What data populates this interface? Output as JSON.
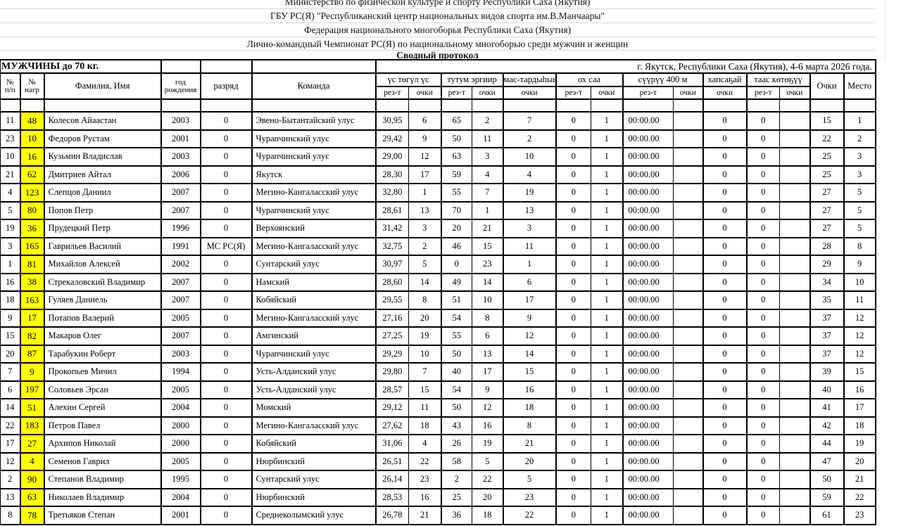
{
  "document_header": {
    "lines": [
      "Министерство по физической культуре и спорту Республики Саха (Якутия)",
      "ГБУ РС(Я) \"Республиканский центр национальных видов спорта им.В.Манчаары\"",
      "Федерация национального многоборья Республики Саха (Якутия)",
      "Лично-командный Чемпионат РС(Я) по национальному многоборью среди мужчин и женщин",
      "Сводный протокол"
    ]
  },
  "title_row": {
    "category": "МУЖЧИНЫ до 70 кг.",
    "location_date": "г. Якутск, Республики Саха (Якутия), 4-6 марта 2026 года."
  },
  "table": {
    "simple_headers": {
      "pp": [
        "№",
        "п/п"
      ],
      "bib": [
        "№",
        "нагр"
      ],
      "name": "Фамилия, Имя",
      "year": [
        "год",
        "рождения"
      ],
      "rank": "разряд",
      "team": "Команда"
    },
    "groups": [
      {
        "label": "үс төгүл үс",
        "sub": [
          "рез-т",
          "очки"
        ]
      },
      {
        "label": "тутум эргиир",
        "sub": [
          "рез-т",
          "очки"
        ]
      },
      {
        "label": "мас-тардыһыы",
        "sub": [
          "очки"
        ]
      },
      {
        "label": "ох саа",
        "sub": [
          "рез-т",
          "очки"
        ]
      },
      {
        "label": "сүүрүү 400 м",
        "sub": [
          "рез-т",
          "очки"
        ]
      },
      {
        "label": "хапсаҕай",
        "sub": [
          "очки"
        ]
      },
      {
        "label": "таас көтөҕүү",
        "sub": [
          "рез-т",
          "очки"
        ]
      }
    ],
    "points_header": "Очки",
    "place_header": "Место",
    "rows": [
      [
        11,
        48,
        "Колесов Айаастан",
        2003,
        "0",
        "Эвено-Бытантайский улус",
        "30,95",
        6,
        65,
        2,
        7,
        0,
        1,
        "00:00.00",
        "",
        0,
        0,
        "",
        15,
        1
      ],
      [
        23,
        10,
        "Федоров Рустам",
        2001,
        "0",
        "Чурапчинский улус",
        "29,42",
        9,
        50,
        11,
        2,
        0,
        1,
        "00:00.00",
        "",
        0,
        0,
        "",
        22,
        2
      ],
      [
        10,
        16,
        "Кузьмин Владислав",
        2003,
        "0",
        "Чурапчинский улус",
        "29,00",
        12,
        63,
        3,
        10,
        0,
        1,
        "00:00.00",
        "",
        0,
        0,
        "",
        25,
        3
      ],
      [
        21,
        62,
        "Дмитриев Айтал",
        2006,
        "0",
        "Якутск",
        "28,30",
        17,
        59,
        4,
        4,
        0,
        1,
        "00:00.00",
        "",
        0,
        0,
        "",
        25,
        3
      ],
      [
        4,
        123,
        "Слепцов Даниил",
        2007,
        "0",
        "Мегино-Кангаласский улус",
        "32,80",
        1,
        55,
        7,
        19,
        0,
        1,
        "00:00.00",
        "",
        0,
        0,
        "",
        27,
        5
      ],
      [
        5,
        80,
        "Попов Петр",
        2007,
        "0",
        "Чурапчинский улус",
        "28,61",
        13,
        70,
        1,
        13,
        0,
        1,
        "00:00.00",
        "",
        0,
        0,
        "",
        27,
        5
      ],
      [
        19,
        36,
        "Прудецкий Петр",
        1996,
        "0",
        "Верхоянский",
        "31,42",
        3,
        20,
        21,
        3,
        0,
        1,
        "00:00.00",
        "",
        0,
        0,
        "",
        27,
        5
      ],
      [
        3,
        165,
        "Гаврильев Василий",
        1991,
        "МС РС(Я)",
        "Мегино-Кангаласский улус",
        "32,75",
        2,
        46,
        15,
        11,
        0,
        1,
        "00:00.00",
        "",
        0,
        0,
        "",
        28,
        8
      ],
      [
        1,
        81,
        "Михайлов Алексей",
        2002,
        "0",
        "Сунтарский улус",
        "30,97",
        5,
        0,
        23,
        1,
        0,
        1,
        "00:00.00",
        "",
        0,
        0,
        "",
        29,
        9
      ],
      [
        16,
        38,
        "Стрекаловский Владимир",
        2007,
        "0",
        "Намский",
        "28,60",
        14,
        49,
        14,
        6,
        0,
        1,
        "00:00.00",
        "",
        0,
        0,
        "",
        34,
        10
      ],
      [
        18,
        163,
        "Гуляев Даниель",
        2007,
        "0",
        "Кобяйский",
        "29,55",
        8,
        51,
        10,
        17,
        0,
        1,
        "00:00.00",
        "",
        0,
        0,
        "",
        35,
        11
      ],
      [
        9,
        17,
        "Потапов Валерий",
        2005,
        "0",
        "Мегино-Кангаласский улус",
        "27,16",
        20,
        54,
        8,
        9,
        0,
        1,
        "00:00.00",
        "",
        0,
        0,
        "",
        37,
        12
      ],
      [
        15,
        82,
        "Макаров Олег",
        2007,
        "0",
        "Амгинский",
        "27,25",
        19,
        55,
        6,
        12,
        0,
        1,
        "00:00.00",
        "",
        0,
        0,
        "",
        37,
        12
      ],
      [
        20,
        87,
        "Тарабукин Роберт",
        2003,
        "0",
        "Чурапчинский улус",
        "29,29",
        10,
        50,
        13,
        14,
        0,
        1,
        "00:00.00",
        "",
        0,
        0,
        "",
        37,
        12
      ],
      [
        7,
        9,
        "Прокопьев Мичил",
        1994,
        "0",
        "Усть-Алданский улус",
        "29,80",
        7,
        40,
        17,
        15,
        0,
        1,
        "00:00.00",
        "",
        0,
        0,
        "",
        39,
        15
      ],
      [
        6,
        197,
        "Соловьев Эрсан",
        2005,
        "0",
        "Усть-Алданский улус",
        "28,57",
        15,
        54,
        9,
        16,
        0,
        1,
        "00:00.00",
        "",
        0,
        0,
        "",
        40,
        16
      ],
      [
        14,
        51,
        "Алехин Сергей",
        2004,
        "0",
        "Момский",
        "29,12",
        11,
        50,
        12,
        18,
        0,
        1,
        "00:00.00",
        "",
        0,
        0,
        "",
        41,
        17
      ],
      [
        22,
        183,
        "Петров Павел",
        2000,
        "0",
        "Мегино-Кангаласский улус",
        "27,62",
        18,
        43,
        16,
        8,
        0,
        1,
        "00:00.00",
        "",
        0,
        0,
        "",
        42,
        18
      ],
      [
        17,
        27,
        "Архипов Николай",
        2000,
        "0",
        "Кобяйский",
        "31,06",
        4,
        26,
        19,
        21,
        0,
        1,
        "00:00.00",
        "",
        0,
        0,
        "",
        44,
        19
      ],
      [
        12,
        4,
        "Семенов Гаврил",
        2005,
        "0",
        "Нюрбинский",
        "26,51",
        22,
        58,
        5,
        20,
        0,
        1,
        "00:00.00",
        "",
        0,
        0,
        "",
        47,
        20
      ],
      [
        2,
        90,
        "Степанов Владимир",
        1995,
        "0",
        "Сунтарский улус",
        "26,14",
        23,
        2,
        22,
        5,
        0,
        1,
        "00:00.00",
        "",
        0,
        0,
        "",
        50,
        21
      ],
      [
        13,
        63,
        "Николаев Владимир",
        2004,
        "0",
        "Нюрбинский",
        "28,53",
        16,
        25,
        20,
        23,
        0,
        1,
        "00:00.00",
        "",
        0,
        0,
        "",
        59,
        22
      ],
      [
        8,
        78,
        "Третьяков Степан",
        2001,
        "0",
        "Среднеколымский улус",
        "26,78",
        21,
        36,
        18,
        22,
        0,
        1,
        "00:00.00",
        "",
        0,
        0,
        "",
        61,
        23
      ]
    ]
  },
  "colors": {
    "bib_highlight": "#ffff00",
    "grid_line": "#d9d9d9",
    "table_border": "#000000"
  }
}
